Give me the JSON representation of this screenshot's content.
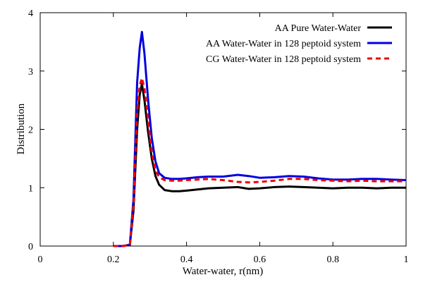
{
  "chart_data": {
    "type": "line",
    "xlabel": "Water-water, r(nm)",
    "ylabel": "Distribution",
    "xlim": [
      0,
      1
    ],
    "ylim": [
      0,
      4
    ],
    "xticks": [
      0,
      0.2,
      0.4,
      0.6,
      0.8,
      1
    ],
    "xtick_labels": [
      "0",
      "0.2",
      "0.4",
      "0.6",
      "0.8",
      "1"
    ],
    "yticks": [
      0,
      1,
      2,
      3,
      4
    ],
    "ytick_labels": [
      "0",
      "1",
      "2",
      "3",
      "4"
    ],
    "grid": false,
    "legend_position": "top-right",
    "series": [
      {
        "name": "AA Pure Water-Water",
        "color": "#000000",
        "dash": "solid",
        "x": [
          0.2,
          0.225,
          0.245,
          0.255,
          0.265,
          0.272,
          0.278,
          0.285,
          0.295,
          0.305,
          0.315,
          0.325,
          0.34,
          0.36,
          0.38,
          0.4,
          0.43,
          0.46,
          0.5,
          0.54,
          0.57,
          0.6,
          0.64,
          0.68,
          0.72,
          0.76,
          0.8,
          0.84,
          0.88,
          0.92,
          0.96,
          1.0
        ],
        "y": [
          0.0,
          0.0,
          0.02,
          0.6,
          2.0,
          2.6,
          2.78,
          2.5,
          1.95,
          1.5,
          1.2,
          1.05,
          0.96,
          0.94,
          0.94,
          0.95,
          0.97,
          0.99,
          1.0,
          1.01,
          0.98,
          0.99,
          1.01,
          1.02,
          1.01,
          1.0,
          0.99,
          1.0,
          1.0,
          0.99,
          1.0,
          1.0
        ]
      },
      {
        "name": "AA Water-Water in 128 peptoid system",
        "color": "#0000e0",
        "dash": "solid",
        "x": [
          0.2,
          0.225,
          0.245,
          0.255,
          0.265,
          0.272,
          0.278,
          0.285,
          0.295,
          0.305,
          0.315,
          0.325,
          0.34,
          0.36,
          0.38,
          0.4,
          0.43,
          0.46,
          0.5,
          0.54,
          0.57,
          0.6,
          0.64,
          0.68,
          0.72,
          0.76,
          0.8,
          0.84,
          0.88,
          0.92,
          0.96,
          1.0
        ],
        "y": [
          0.0,
          0.0,
          0.02,
          0.8,
          2.8,
          3.4,
          3.67,
          3.3,
          2.5,
          1.85,
          1.45,
          1.25,
          1.17,
          1.15,
          1.15,
          1.16,
          1.18,
          1.19,
          1.19,
          1.22,
          1.2,
          1.17,
          1.18,
          1.2,
          1.19,
          1.16,
          1.14,
          1.14,
          1.15,
          1.15,
          1.14,
          1.13
        ]
      },
      {
        "name": "CG Water-Water in 128 peptoid system",
        "color": "#ee0000",
        "dash": "dashed",
        "x": [
          0.2,
          0.225,
          0.245,
          0.255,
          0.265,
          0.272,
          0.278,
          0.285,
          0.295,
          0.305,
          0.315,
          0.325,
          0.34,
          0.36,
          0.38,
          0.4,
          0.43,
          0.46,
          0.5,
          0.54,
          0.57,
          0.6,
          0.64,
          0.68,
          0.72,
          0.76,
          0.8,
          0.84,
          0.88,
          0.92,
          0.96,
          1.0
        ],
        "y": [
          0.0,
          0.0,
          0.02,
          0.7,
          2.3,
          2.75,
          2.88,
          2.7,
          2.15,
          1.6,
          1.3,
          1.18,
          1.13,
          1.12,
          1.12,
          1.13,
          1.14,
          1.15,
          1.13,
          1.1,
          1.09,
          1.1,
          1.12,
          1.15,
          1.15,
          1.13,
          1.12,
          1.11,
          1.12,
          1.11,
          1.11,
          1.11
        ]
      }
    ]
  }
}
